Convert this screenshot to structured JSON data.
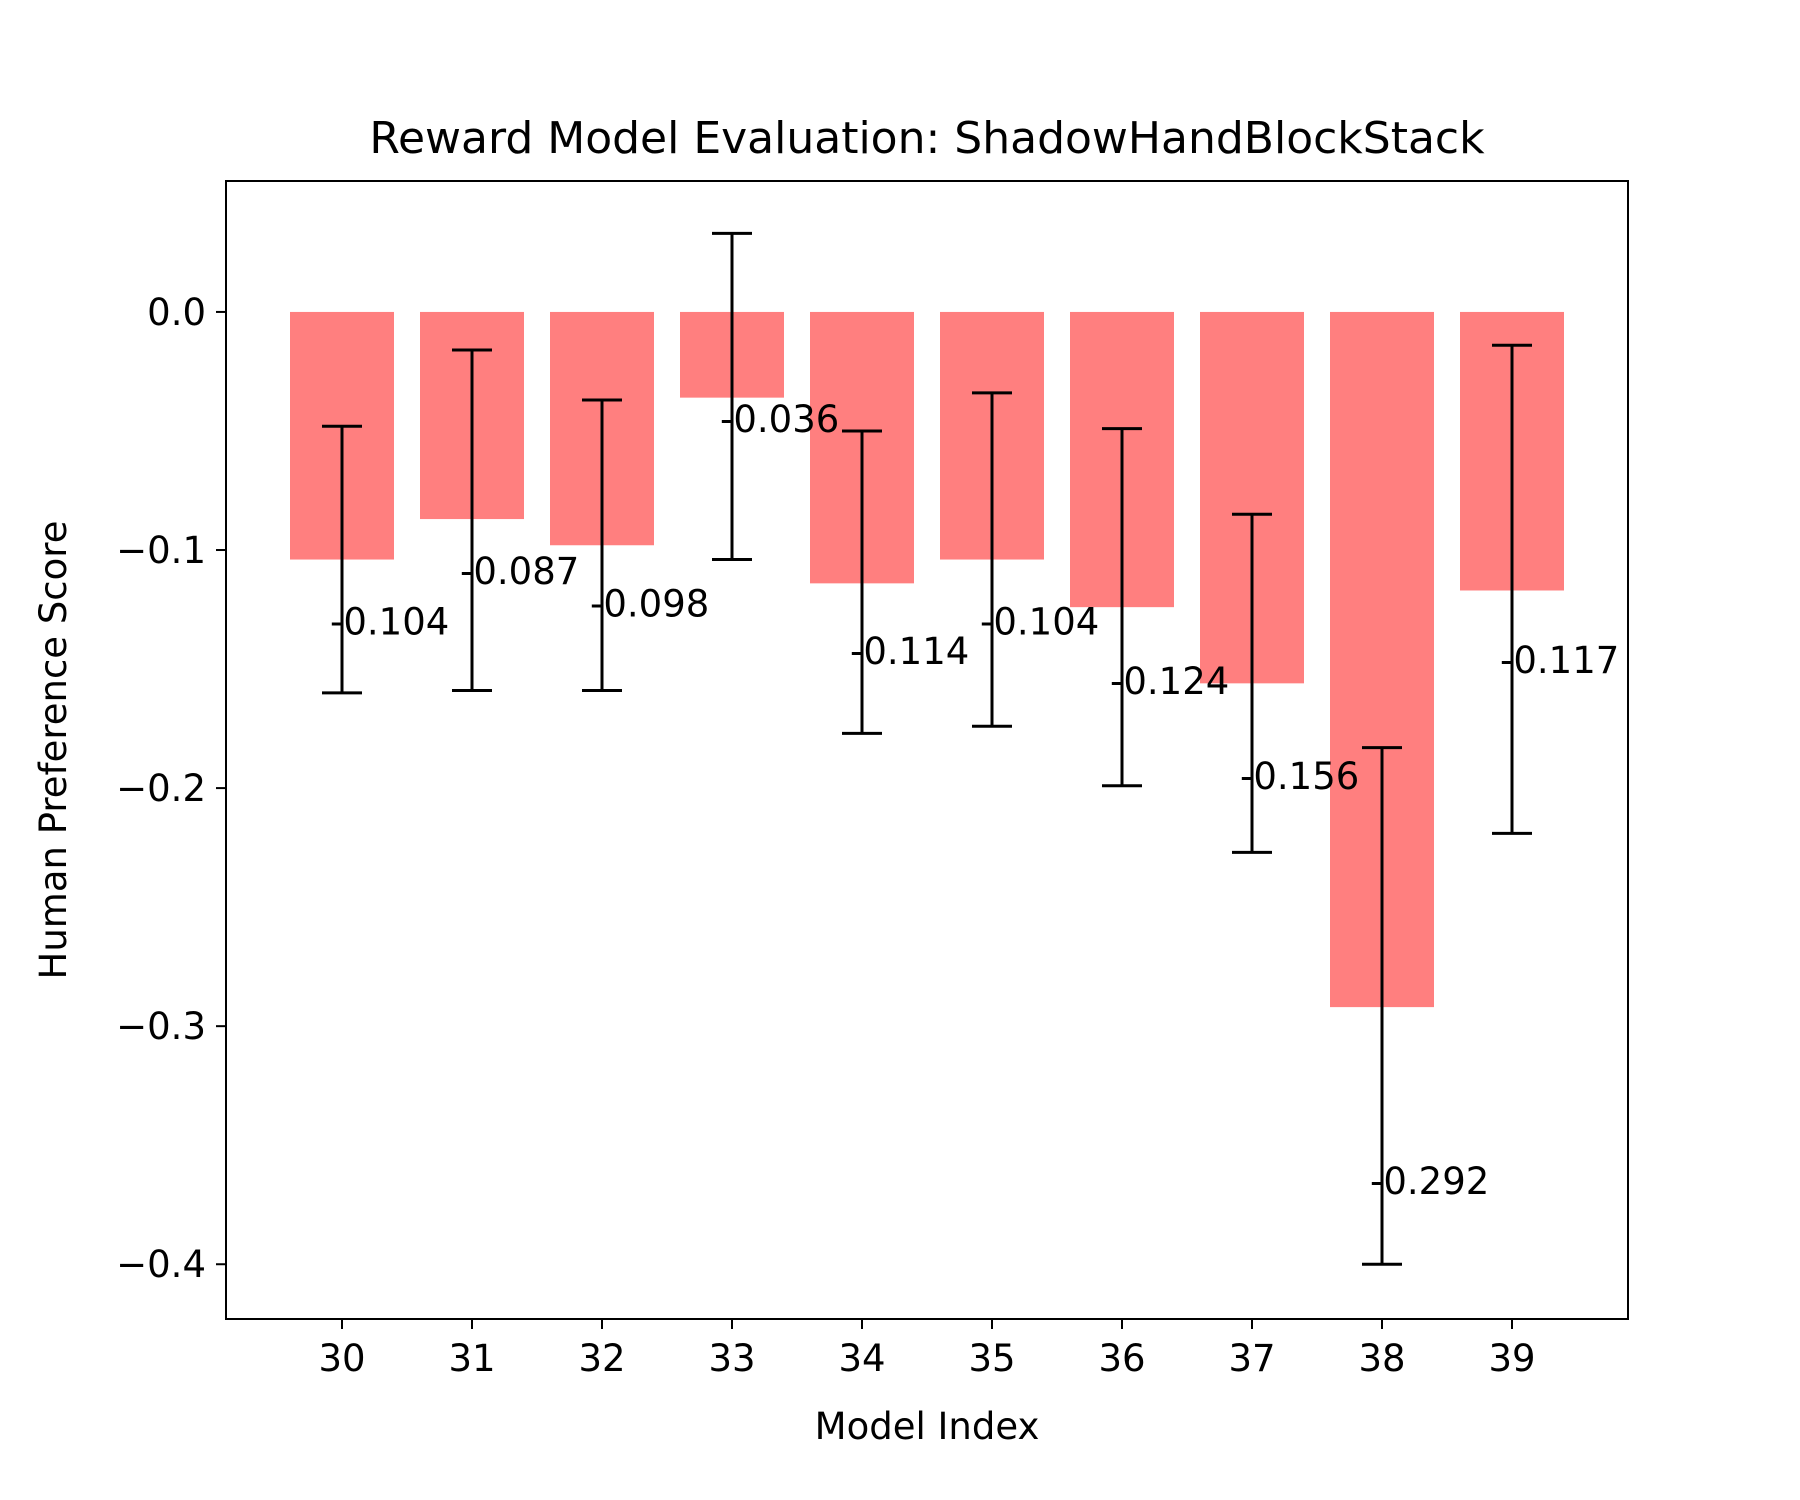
{
  "chart_data": {
    "type": "bar",
    "title": "Reward Model Evaluation: ShadowHandBlockStack",
    "xlabel": "Model Index",
    "ylabel": "Human Preference Score",
    "categories": [
      "30",
      "31",
      "32",
      "33",
      "34",
      "35",
      "36",
      "37",
      "38",
      "39"
    ],
    "values": [
      -0.104,
      -0.087,
      -0.098,
      -0.036,
      -0.114,
      -0.104,
      -0.124,
      -0.156,
      -0.292,
      -0.117
    ],
    "value_labels": [
      "-0.104",
      "-0.087",
      "-0.098",
      "-0.036",
      "-0.114",
      "-0.104",
      "-0.124",
      "-0.156",
      "-0.292",
      "-0.117"
    ],
    "error_low": [
      -0.16,
      -0.159,
      -0.159,
      -0.104,
      -0.177,
      -0.174,
      -0.199,
      -0.227,
      -0.4,
      -0.219
    ],
    "error_high": [
      -0.048,
      -0.016,
      -0.037,
      0.033,
      -0.05,
      -0.034,
      -0.049,
      -0.085,
      -0.183,
      -0.014
    ],
    "ylim": [
      -0.423,
      0.055
    ],
    "yticks": [
      0.0,
      -0.1,
      -0.2,
      -0.3,
      -0.4
    ],
    "ytick_labels": [
      "0.0",
      "−0.1",
      "−0.2",
      "−0.3",
      "−0.4"
    ],
    "bar_color": "#ff7f7f",
    "error_color": "#000000",
    "grid": false,
    "legend": "none"
  }
}
